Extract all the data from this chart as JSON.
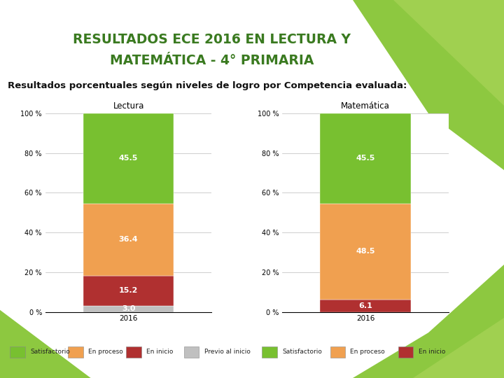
{
  "title_line1": "RESULTADOS ECE 2016 EN LECTURA Y",
  "title_line2": "MATEMÁTICA - 4° PRIMARIA",
  "subtitle": "Resultados porcentuales según niveles de logro por Competencia evaluada:",
  "title_color": "#3a7a20",
  "bg_color": "#ffffff",
  "outer_green": "#7ab830",
  "subtitle_bold": true,
  "lectura": {
    "title": "Lectura",
    "x_label": "2016",
    "segments": [
      {
        "label": "Previo al inicio",
        "value": 3.0,
        "color": "#c0c0c0"
      },
      {
        "label": "En inicio",
        "value": 15.2,
        "color": "#b03030"
      },
      {
        "label": "En proceso",
        "value": 36.4,
        "color": "#f0a050"
      },
      {
        "label": "Satisfactorio",
        "value": 45.5,
        "color": "#78c030"
      }
    ]
  },
  "matematica": {
    "title": "Matemática",
    "x_label": "2016",
    "segments": [
      {
        "label": "En inicio",
        "value": 6.1,
        "color": "#b03030"
      },
      {
        "label": "En proceso",
        "value": 48.5,
        "color": "#f0a050"
      },
      {
        "label": "Satisfactorio",
        "value": 45.5,
        "color": "#78c030"
      }
    ]
  },
  "legend_lectura": [
    {
      "label": "Satisfactorio",
      "color": "#78c030"
    },
    {
      "label": "En proceso",
      "color": "#f0a050"
    },
    {
      "label": "En inicio",
      "color": "#b03030"
    },
    {
      "label": "Previo al inicio",
      "color": "#c0c0c0"
    }
  ],
  "legend_matematica": [
    {
      "label": "Satisfactorio",
      "color": "#78c030"
    },
    {
      "label": "En proceso",
      "color": "#f0a050"
    },
    {
      "label": "En inicio",
      "color": "#b03030"
    }
  ],
  "ylim": [
    0,
    100
  ],
  "yticks": [
    0,
    20,
    40,
    60,
    80,
    100
  ],
  "ytick_labels": [
    "0 %",
    "20 %",
    "40 %",
    "60 %",
    "80 %",
    "100 %"
  ]
}
